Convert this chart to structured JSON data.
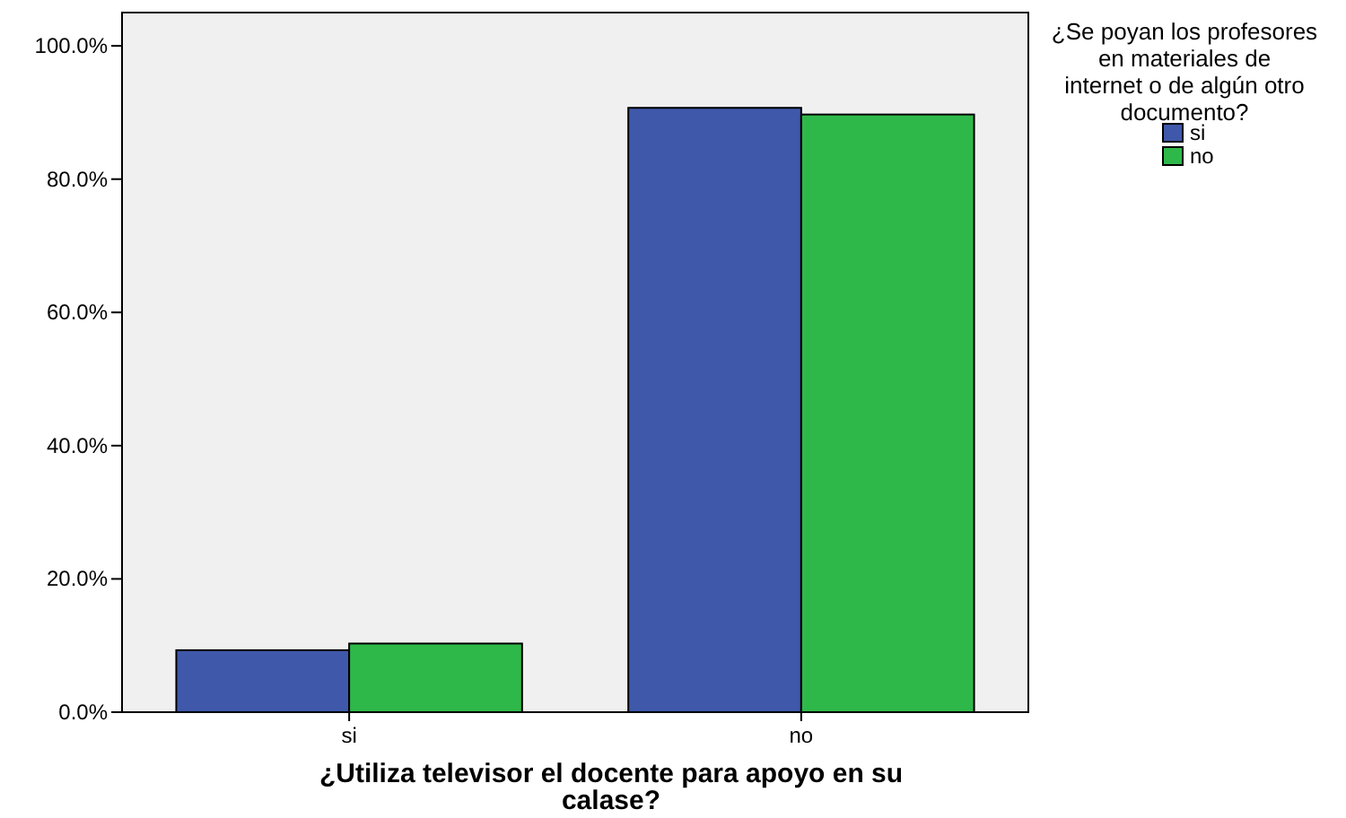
{
  "chart_data": {
    "type": "bar",
    "xlabel": "¿Utiliza televisor el docente para apoyo en su calase?",
    "legend_title": "¿Se poyan los profesores en materiales de internet o de algún otro documento?",
    "categories": [
      "si",
      "no"
    ],
    "series": [
      {
        "name": "si",
        "color": "#3f58aa",
        "values": [
          9.3,
          90.7
        ]
      },
      {
        "name": "no",
        "color": "#2fb84a",
        "values": [
          10.3,
          89.7
        ]
      }
    ],
    "ylim": [
      0,
      105
    ],
    "yticks": [
      {
        "value": 0,
        "label": "0.0%"
      },
      {
        "value": 20,
        "label": "20.0%"
      },
      {
        "value": 40,
        "label": "40.0%"
      },
      {
        "value": 60,
        "label": "60.0%"
      },
      {
        "value": 80,
        "label": "80.0%"
      },
      {
        "value": 100,
        "label": "100.0%"
      }
    ],
    "grid": false,
    "legend": "top right"
  }
}
